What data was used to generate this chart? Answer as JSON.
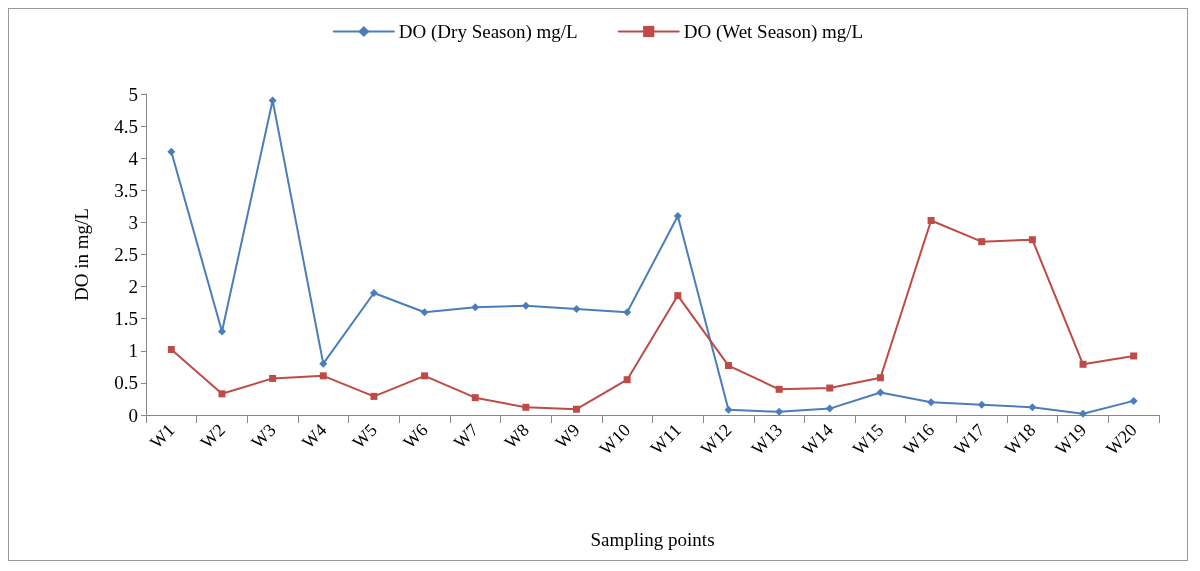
{
  "chart_data": {
    "type": "line",
    "xlabel": "Sampling points",
    "ylabel": "DO in mg/L",
    "categories": [
      "W1",
      "W2",
      "W3",
      "W4",
      "W5",
      "W6",
      "W7",
      "W8",
      "W9",
      "W10",
      "W11",
      "W12",
      "W13",
      "W14",
      "W15",
      "W16",
      "W17",
      "W18",
      "W19",
      "W20"
    ],
    "series": [
      {
        "name": "DO (Dry Season) mg/L",
        "color": "#4a7ebb",
        "marker": "diamond",
        "values": [
          4.1,
          1.3,
          4.9,
          0.8,
          1.9,
          1.6,
          1.68,
          1.7,
          1.65,
          1.6,
          3.1,
          0.08,
          0.05,
          0.1,
          0.35,
          0.2,
          0.16,
          0.12,
          0.02,
          0.22
        ]
      },
      {
        "name": "DO (Wet Season) mg/L",
        "color": "#be4b48",
        "marker": "square",
        "values": [
          1.02,
          0.33,
          0.57,
          0.61,
          0.29,
          0.61,
          0.27,
          0.12,
          0.09,
          0.55,
          1.86,
          0.77,
          0.4,
          0.42,
          0.58,
          3.03,
          2.7,
          2.73,
          0.79,
          0.92
        ]
      }
    ],
    "ylim": [
      0,
      5
    ],
    "yticks": [
      0,
      0.5,
      1,
      1.5,
      2,
      2.5,
      3,
      3.5,
      4,
      4.5,
      5
    ],
    "grid": false,
    "legend": "top",
    "line_style": "solid"
  }
}
